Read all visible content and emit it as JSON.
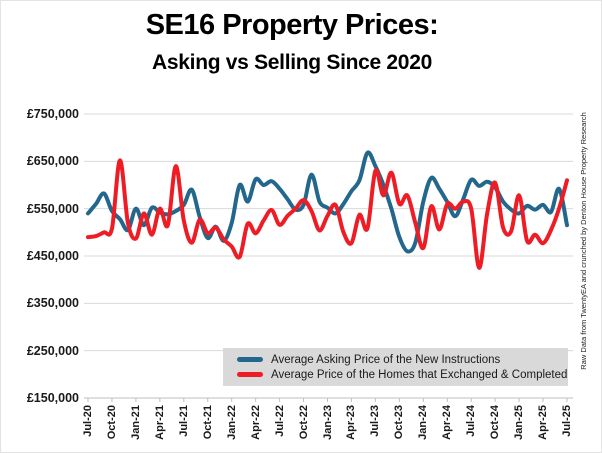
{
  "title": "SE16 Property Prices:",
  "subtitle": "Asking vs Selling Since 2020",
  "credit": "Raw Data from TwentyEA and crunched by Denton House Property Research",
  "chart_data": {
    "type": "line",
    "smooth": true,
    "grid": "horizontal",
    "legend_position": "bottom-inside",
    "ylim": [
      150000,
      750000
    ],
    "y_tick_labels": [
      "£150,000",
      "£250,000",
      "£350,000",
      "£450,000",
      "£550,000",
      "£650,000",
      "£750,000"
    ],
    "x_tick_labels": [
      "Jul-20",
      "Oct-20",
      "Jan-21",
      "Apr-21",
      "Jul-21",
      "Oct-21",
      "Jan-22",
      "Apr-22",
      "Jul-22",
      "Oct-22",
      "Jan-23",
      "Apr-23",
      "Jul-23",
      "Oct-23",
      "Jan-24",
      "Apr-24",
      "Jul-24",
      "Oct-24",
      "Jan-25",
      "Apr-25",
      "Jul-25"
    ],
    "x": [
      "Jul-20",
      "Aug-20",
      "Sep-20",
      "Oct-20",
      "Nov-20",
      "Dec-20",
      "Jan-21",
      "Feb-21",
      "Mar-21",
      "Apr-21",
      "May-21",
      "Jun-21",
      "Jul-21",
      "Aug-21",
      "Sep-21",
      "Oct-21",
      "Nov-21",
      "Dec-21",
      "Jan-22",
      "Feb-22",
      "Mar-22",
      "Apr-22",
      "May-22",
      "Jun-22",
      "Jul-22",
      "Aug-22",
      "Sep-22",
      "Oct-22",
      "Nov-22",
      "Dec-22",
      "Jan-23",
      "Feb-23",
      "Mar-23",
      "Apr-23",
      "May-23",
      "Jun-23",
      "Jul-23",
      "Aug-23",
      "Sep-23",
      "Oct-23",
      "Nov-23",
      "Dec-23",
      "Jan-24",
      "Feb-24",
      "Mar-24",
      "Apr-24",
      "May-24",
      "Jun-24",
      "Jul-24",
      "Aug-24",
      "Sep-24",
      "Oct-24",
      "Nov-24",
      "Dec-24",
      "Jan-25",
      "Feb-25",
      "Mar-25",
      "Apr-25",
      "May-25",
      "Jun-25",
      "Jul-25"
    ],
    "series": [
      {
        "name": "Average Asking Price of the New Instructions",
        "color": "#24678D",
        "values": [
          540000,
          560000,
          582000,
          545000,
          528000,
          505000,
          550000,
          515000,
          552000,
          542000,
          538000,
          545000,
          558000,
          590000,
          532000,
          488000,
          512000,
          482000,
          520000,
          600000,
          565000,
          612000,
          600000,
          608000,
          592000,
          570000,
          548000,
          558000,
          622000,
          565000,
          552000,
          540000,
          560000,
          587000,
          610000,
          668000,
          640000,
          600000,
          550000,
          490000,
          460000,
          478000,
          565000,
          615000,
          592000,
          564000,
          534000,
          570000,
          611000,
          598000,
          607000,
          595000,
          565000,
          548000,
          540000,
          556000,
          548000,
          558000,
          543000,
          592000,
          515000
        ]
      },
      {
        "name": "Average Price of the Homes that Exchanged & Completed",
        "color": "#EE1C24",
        "values": [
          490000,
          492000,
          500000,
          508000,
          652000,
          520000,
          487000,
          540000,
          495000,
          550000,
          515000,
          640000,
          525000,
          478000,
          527000,
          498000,
          510000,
          485000,
          470000,
          448000,
          518000,
          498000,
          525000,
          547000,
          516000,
          535000,
          550000,
          568000,
          545000,
          504000,
          535000,
          558000,
          500000,
          477000,
          537000,
          508000,
          630000,
          578000,
          626000,
          560000,
          578000,
          520000,
          467000,
          555000,
          506000,
          560000,
          550000,
          565000,
          550000,
          425000,
          540000,
          605000,
          510000,
          502000,
          578000,
          482000,
          495000,
          477000,
          505000,
          550000,
          610000
        ]
      }
    ]
  }
}
